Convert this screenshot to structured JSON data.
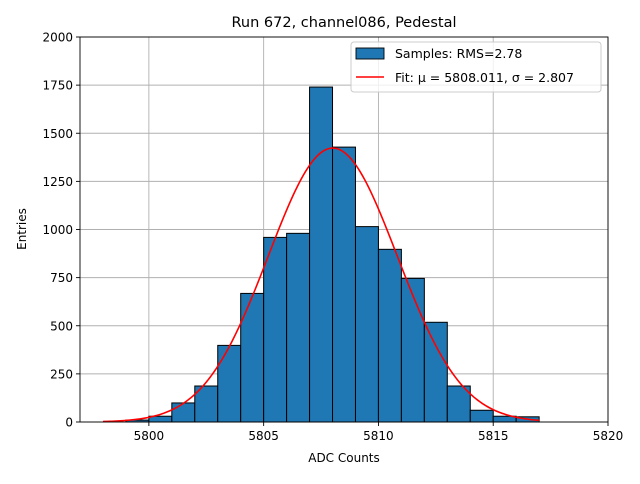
{
  "chart_data": {
    "type": "bar",
    "title": "Run 672, channel086, Pedestal",
    "xlabel": "ADC Counts",
    "ylabel": "Entries",
    "xlim": [
      5797,
      5820
    ],
    "ylim": [
      0,
      2000
    ],
    "xticks": [
      "5800",
      "5805",
      "5810",
      "5815",
      "5820"
    ],
    "yticks": [
      "0",
      "250",
      "500",
      "750",
      "1000",
      "1250",
      "1500",
      "1750",
      "2000"
    ],
    "grid": true,
    "legend_position": "top-right",
    "histogram": {
      "name": "Samples: RMS=2.78",
      "bin_edges": [
        5799,
        5800,
        5801,
        5802,
        5803,
        5804,
        5805,
        5806,
        5807,
        5808,
        5809,
        5810,
        5811,
        5812,
        5813,
        5814,
        5815,
        5816,
        5817
      ],
      "values": [
        10,
        30,
        99,
        187,
        398,
        668,
        959,
        980,
        1740,
        1428,
        1015,
        897,
        746,
        518,
        187,
        61,
        30,
        27
      ],
      "color": "#1f77b4",
      "edgecolor": "#000000"
    },
    "fit": {
      "name": "Fit: μ = 5808.011, σ = 2.807",
      "label_prefix": "Fit: ",
      "mu_text": "μ = 5808.011",
      "sigma_text": "σ = 2.807",
      "mu": 5808.011,
      "sigma": 2.807,
      "amplitude": 1423,
      "x_range": [
        5798,
        5817
      ],
      "color": "#ff0000"
    }
  }
}
